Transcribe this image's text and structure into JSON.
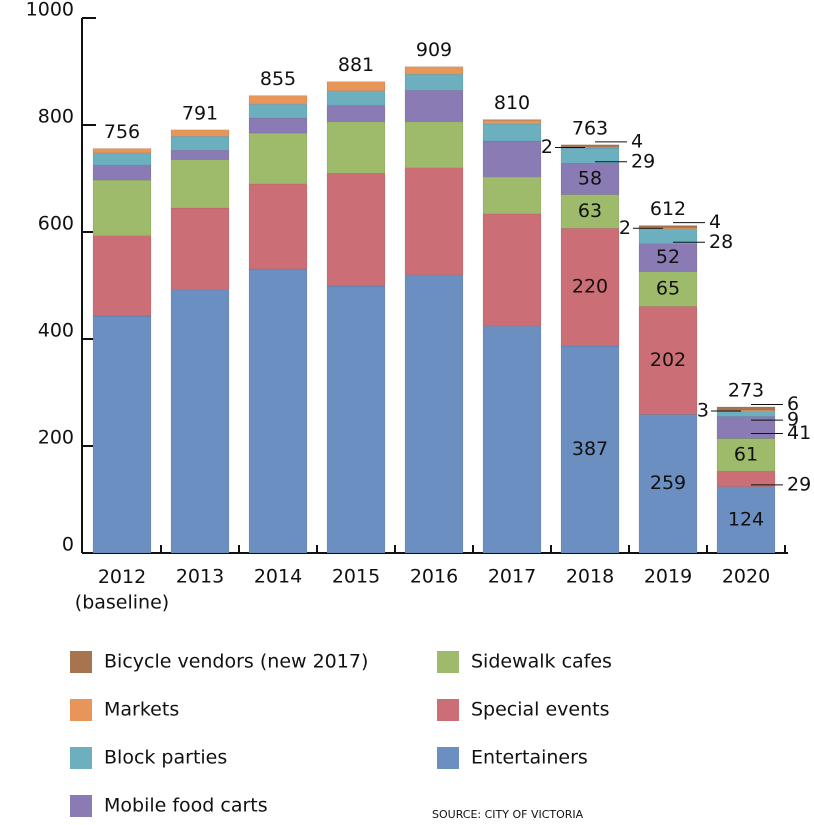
{
  "chart_data": {
    "type": "stacked_bar",
    "categories": [
      "2012\n(baseline)",
      "2013",
      "2014",
      "2015",
      "2016",
      "2017",
      "2018",
      "2019",
      "2020"
    ],
    "series": [
      {
        "name": "Entertainers",
        "color": "#6b8fc0",
        "values": [
          443,
          492,
          531,
          499,
          520,
          424,
          387,
          259,
          124
        ],
        "value_labels": [
          null,
          null,
          null,
          null,
          null,
          null,
          "387",
          "259",
          "124"
        ]
      },
      {
        "name": "Special events",
        "color": "#cc6e75",
        "values": [
          150,
          153,
          159,
          211,
          200,
          210,
          220,
          202,
          29
        ],
        "value_labels": [
          null,
          null,
          null,
          null,
          null,
          null,
          "220",
          "202",
          "29"
        ]
      },
      {
        "name": "Sidewalk cafes",
        "color": "#9dbb6a",
        "values": [
          104,
          90,
          95,
          96,
          86,
          69,
          63,
          65,
          61
        ],
        "value_labels": [
          null,
          null,
          null,
          null,
          null,
          null,
          "63",
          "65",
          "61"
        ]
      },
      {
        "name": "Mobile food carts",
        "color": "#8b7bb5",
        "values": [
          28,
          18,
          28,
          31,
          59,
          67,
          58,
          52,
          41
        ],
        "value_labels": [
          null,
          null,
          null,
          null,
          null,
          null,
          "58",
          "52",
          "41"
        ]
      },
      {
        "name": "Block parties",
        "color": "#6cb0c0",
        "values": [
          23,
          26,
          26,
          27,
          30,
          32,
          29,
          28,
          9
        ],
        "value_labels": [
          null,
          null,
          null,
          null,
          null,
          null,
          "29",
          "28",
          "9"
        ]
      },
      {
        "name": "Markets",
        "color": "#e8955a",
        "values": [
          8,
          12,
          16,
          17,
          14,
          7,
          2,
          2,
          3
        ],
        "value_labels": [
          null,
          null,
          null,
          null,
          null,
          null,
          "2",
          "2",
          "3"
        ]
      },
      {
        "name": "Bicycle vendors (new 2017)",
        "color": "#a8744f",
        "values": [
          null,
          null,
          null,
          null,
          null,
          1,
          4,
          4,
          6
        ],
        "value_labels": [
          null,
          null,
          null,
          null,
          null,
          null,
          "4",
          "4",
          "6"
        ]
      }
    ],
    "totals": [
      756,
      791,
      855,
      881,
      909,
      810,
      763,
      612,
      273
    ],
    "ylim": [
      0,
      1000
    ],
    "yticks": [
      0,
      200,
      400,
      600,
      800,
      1000
    ],
    "legend_order": [
      "Bicycle vendors (new 2017)",
      "Markets",
      "Block parties",
      "Mobile food carts",
      "Sidewalk cafes",
      "Special events",
      "Entertainers"
    ],
    "source": "SOURCE: CITY OF VICTORIA"
  }
}
